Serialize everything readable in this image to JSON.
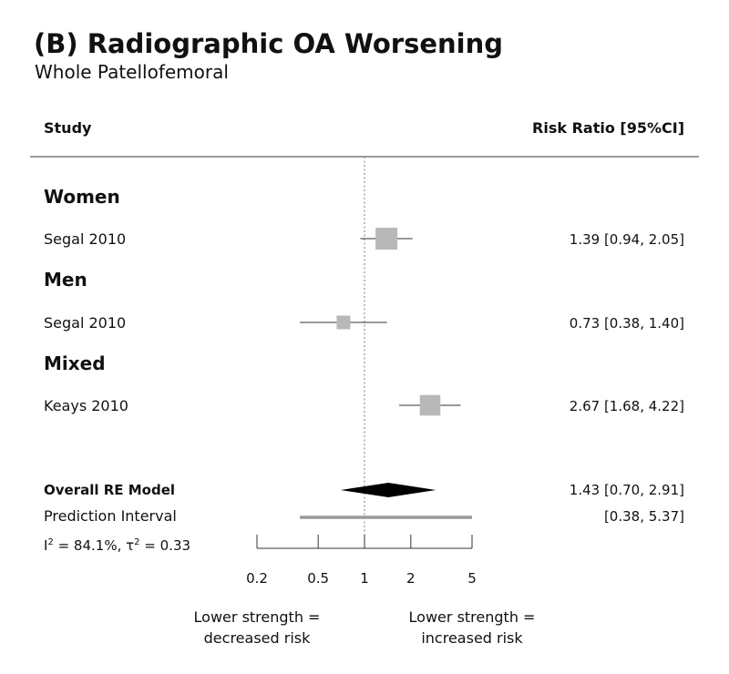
{
  "chart_data": {
    "type": "forest",
    "title": "(B) Radiographic OA Worsening",
    "subtitle": "Whole Patellofemoral",
    "columns": {
      "left": "Study",
      "right": "Risk Ratio [95%CI]"
    },
    "scale": "log",
    "xlim": [
      0.2,
      5
    ],
    "reference_line": 1,
    "ticks": [
      0.2,
      0.5,
      1,
      2,
      5
    ],
    "tick_labels": [
      "0.2",
      "0.5",
      "1",
      "2",
      "5"
    ],
    "groups": [
      {
        "label": "Women",
        "studies": [
          {
            "study": "Segal 2010",
            "estimate": 1.39,
            "lower": 0.94,
            "upper": 2.05,
            "weight": 1.0,
            "ci_text": "1.39 [0.94, 2.05]"
          }
        ]
      },
      {
        "label": "Men",
        "studies": [
          {
            "study": "Segal 2010",
            "estimate": 0.73,
            "lower": 0.38,
            "upper": 1.4,
            "weight": 0.5,
            "ci_text": "0.73 [0.38, 1.40]"
          }
        ]
      },
      {
        "label": "Mixed",
        "studies": [
          {
            "study": "Keays 2010",
            "estimate": 2.67,
            "lower": 1.68,
            "upper": 4.22,
            "weight": 0.92,
            "ci_text": "2.67 [1.68, 4.22]"
          }
        ]
      }
    ],
    "overall": {
      "label": "Overall RE Model",
      "estimate": 1.43,
      "lower": 0.7,
      "upper": 2.91,
      "ci_text": "1.43 [0.70, 2.91]"
    },
    "prediction_interval": {
      "label": "Prediction Interval",
      "lower": 0.38,
      "upper": 5.37,
      "ci_text": "[0.38, 5.37]"
    },
    "heterogeneity": {
      "i2": "84.1%",
      "tau2": "0.33"
    },
    "annotations": {
      "left": [
        "Lower strength =",
        "decreased risk"
      ],
      "right": [
        "Lower strength =",
        "increased risk"
      ]
    },
    "colors": {
      "box": "#b8b8b8",
      "diamond": "#000000",
      "prediction": "#999999",
      "line": "#333333",
      "ref": "#777777"
    }
  }
}
